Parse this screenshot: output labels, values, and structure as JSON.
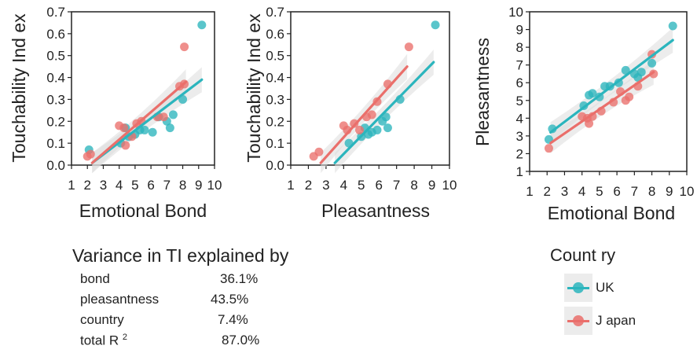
{
  "colors": {
    "uk": "#2bb5bd",
    "japan": "#ea6f6b",
    "band": "#dcdcdc"
  },
  "chart_data": [
    {
      "type": "scatter",
      "xlabel": "Emotional Bond",
      "ylabel": "Touchability Ind ex",
      "xlim": [
        1,
        10
      ],
      "ylim": [
        0,
        0.7
      ],
      "xticks": [
        "1",
        "2",
        "3",
        "4",
        "5",
        "6",
        "7",
        "8",
        "9",
        "10"
      ],
      "yticks": [
        "0.0",
        "0.1",
        "0.2",
        "0.3",
        "0.4",
        "0.5",
        "0.6",
        "0.7"
      ],
      "series": [
        {
          "name": "UK",
          "color": "#2bb5bd",
          "points": [
            [
              2.1,
              0.07
            ],
            [
              4.1,
              0.1
            ],
            [
              4.4,
              0.17
            ],
            [
              4.6,
              0.13
            ],
            [
              5.0,
              0.14
            ],
            [
              5.3,
              0.16
            ],
            [
              5.6,
              0.16
            ],
            [
              6.1,
              0.15
            ],
            [
              6.5,
              0.22
            ],
            [
              7.0,
              0.2
            ],
            [
              7.2,
              0.17
            ],
            [
              7.4,
              0.23
            ],
            [
              8.0,
              0.3
            ],
            [
              9.2,
              0.64
            ]
          ],
          "fit": [
            [
              2.3,
              0.01
            ],
            [
              9.2,
              0.39
            ]
          ]
        },
        {
          "name": "Japan",
          "color": "#ea6f6b",
          "points": [
            [
              2.0,
              0.04
            ],
            [
              2.2,
              0.05
            ],
            [
              4.0,
              0.18
            ],
            [
              4.3,
              0.17
            ],
            [
              4.4,
              0.09
            ],
            [
              4.8,
              0.13
            ],
            [
              5.1,
              0.19
            ],
            [
              5.4,
              0.2
            ],
            [
              6.4,
              0.22
            ],
            [
              6.8,
              0.22
            ],
            [
              7.8,
              0.36
            ],
            [
              8.1,
              0.37
            ],
            [
              8.1,
              0.54
            ]
          ],
          "fit": [
            [
              2.3,
              0.01
            ],
            [
              8.2,
              0.38
            ]
          ]
        }
      ]
    },
    {
      "type": "scatter",
      "xlabel": "Pleasantness",
      "ylabel": "Touchability Ind ex",
      "xlim": [
        1,
        10
      ],
      "ylim": [
        0,
        0.7
      ],
      "xticks": [
        "1",
        "2",
        "3",
        "4",
        "5",
        "6",
        "7",
        "8",
        "9",
        "10"
      ],
      "yticks": [
        "0.0",
        "0.1",
        "0.2",
        "0.3",
        "0.4",
        "0.5",
        "0.6",
        "0.7"
      ],
      "series": [
        {
          "name": "UK",
          "color": "#2bb5bd",
          "points": [
            [
              4.3,
              0.1
            ],
            [
              5.0,
              0.13
            ],
            [
              5.2,
              0.17
            ],
            [
              5.4,
              0.14
            ],
            [
              5.6,
              0.15
            ],
            [
              5.9,
              0.16
            ],
            [
              6.2,
              0.2
            ],
            [
              6.4,
              0.22
            ],
            [
              6.5,
              0.17
            ],
            [
              7.2,
              0.3
            ],
            [
              9.2,
              0.64
            ]
          ],
          "fit": [
            [
              3.5,
              0.01
            ],
            [
              9.1,
              0.47
            ]
          ]
        },
        {
          "name": "Japan",
          "color": "#ea6f6b",
          "points": [
            [
              2.3,
              0.04
            ],
            [
              2.6,
              0.06
            ],
            [
              4.0,
              0.18
            ],
            [
              4.2,
              0.16
            ],
            [
              4.6,
              0.19
            ],
            [
              4.9,
              0.16
            ],
            [
              5.3,
              0.22
            ],
            [
              5.6,
              0.23
            ],
            [
              5.9,
              0.29
            ],
            [
              6.5,
              0.37
            ],
            [
              7.7,
              0.54
            ]
          ],
          "fit": [
            [
              2.7,
              0.01
            ],
            [
              7.6,
              0.45
            ]
          ]
        }
      ]
    },
    {
      "type": "scatter",
      "xlabel": "Emotional Bond",
      "ylabel": "Pleasantness",
      "xlim": [
        1,
        10
      ],
      "ylim": [
        1,
        10
      ],
      "xticks": [
        "1",
        "2",
        "3",
        "4",
        "5",
        "6",
        "7",
        "8",
        "9",
        "10"
      ],
      "yticks": [
        "1",
        "2",
        "3",
        "4",
        "5",
        "6",
        "7",
        "8",
        "9",
        "10"
      ],
      "series": [
        {
          "name": "UK",
          "color": "#2bb5bd",
          "points": [
            [
              2.1,
              2.8
            ],
            [
              2.3,
              3.4
            ],
            [
              4.1,
              4.7
            ],
            [
              4.4,
              5.3
            ],
            [
              4.6,
              5.4
            ],
            [
              5.0,
              5.2
            ],
            [
              5.3,
              5.8
            ],
            [
              5.6,
              5.8
            ],
            [
              6.1,
              6.0
            ],
            [
              6.5,
              6.7
            ],
            [
              7.0,
              6.5
            ],
            [
              7.2,
              6.3
            ],
            [
              7.4,
              6.6
            ],
            [
              8.0,
              7.1
            ],
            [
              9.2,
              9.2
            ]
          ],
          "fit": [
            [
              2.2,
              3.2
            ],
            [
              9.2,
              8.4
            ]
          ]
        },
        {
          "name": "Japan",
          "color": "#ea6f6b",
          "points": [
            [
              2.1,
              2.3
            ],
            [
              4.0,
              4.1
            ],
            [
              4.3,
              4.0
            ],
            [
              4.4,
              3.7
            ],
            [
              4.6,
              4.1
            ],
            [
              5.1,
              4.4
            ],
            [
              5.8,
              4.9
            ],
            [
              6.2,
              5.5
            ],
            [
              6.5,
              5.0
            ],
            [
              6.7,
              5.2
            ],
            [
              7.2,
              5.8
            ],
            [
              8.0,
              7.6
            ],
            [
              8.1,
              6.5
            ]
          ],
          "fit": [
            [
              2.2,
              2.6
            ],
            [
              8.1,
              6.6
            ]
          ]
        }
      ]
    }
  ],
  "stats": {
    "title": "Variance in TI explained by",
    "rows": [
      {
        "label": "bond",
        "value": "36.1%"
      },
      {
        "label": "pleasantness",
        "value": "43.5%"
      },
      {
        "label": "country",
        "value": "7.4%"
      },
      {
        "label": "total R",
        "sup": "2",
        "value": "87.0%"
      }
    ]
  },
  "legend": {
    "title": "Count ry",
    "items": [
      {
        "label": "UK",
        "color": "#2bb5bd"
      },
      {
        "label": "J apan",
        "color": "#ea6f6b"
      }
    ]
  }
}
